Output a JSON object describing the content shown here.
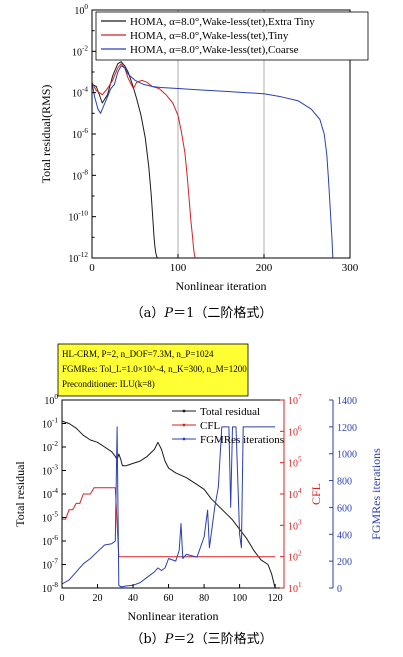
{
  "caption_a": {
    "prefix": "（a）",
    "var": "P",
    "rest": "＝1（二阶格式）"
  },
  "caption_b": {
    "prefix": "（b）",
    "var": "P",
    "rest": "＝2（三阶格式）"
  },
  "info_box": [
    "HL-CRM, P=2, n_DOF=7.3M, n_P=1024",
    "FGMRes: Tol_L=1.0×10^-4, n_K=300, n_M=1200",
    "Preconditioner: ILU(k=8)"
  ],
  "colors": {
    "black": "#1a1a1a",
    "red": "#d42222",
    "blue": "#2a3fb0",
    "grid": "#9a9a9a"
  },
  "chart_data": [
    {
      "type": "line",
      "title": "",
      "xlabel": "Nonlinear iteration",
      "ylabel": "Total residual(RMS)",
      "xlim": [
        0,
        300
      ],
      "ylim_log10": [
        -12,
        0
      ],
      "yscale": "log",
      "x_ticks": [
        "0",
        "100",
        "200",
        "300"
      ],
      "y_ticks": [
        "10^0",
        "10^-2",
        "10^-4",
        "10^-6",
        "10^-8",
        "10^-10",
        "10^-12"
      ],
      "vertical_lines_x": [
        100,
        200
      ],
      "legend_placement": "top-right",
      "series": [
        {
          "name": "HOMA, α=8.0°,Wake-less(tet),Extra Tiny",
          "color": "black",
          "x": [
            0,
            5,
            12,
            18,
            24,
            30,
            34,
            38,
            42,
            47,
            52,
            57,
            62,
            66,
            69,
            71,
            72,
            73,
            74,
            75,
            76
          ],
          "log10y": [
            -3.6,
            -3.7,
            -4.5,
            -4.1,
            -3.2,
            -2.6,
            -2.5,
            -2.7,
            -3.0,
            -3.6,
            -4.3,
            -5.1,
            -6.2,
            -7.6,
            -9,
            -10.3,
            -10.9,
            -11.4,
            -11.7,
            -11.9,
            -12
          ]
        },
        {
          "name": "HOMA, α=8.0°,Wake-less(tet),Tiny",
          "color": "red",
          "x": [
            0,
            5,
            12,
            18,
            24,
            30,
            34,
            38,
            42,
            48,
            52,
            58,
            64,
            70,
            78,
            86,
            94,
            100,
            104,
            108,
            111,
            113,
            115,
            117,
            118,
            119,
            120
          ],
          "log10y": [
            -3.5,
            -3.9,
            -4.1,
            -3.8,
            -3.4,
            -2.8,
            -2.6,
            -2.8,
            -3.3,
            -3.8,
            -3.5,
            -3.4,
            -3.5,
            -3.7,
            -3.8,
            -4.1,
            -4.5,
            -5.1,
            -5.9,
            -6.9,
            -8.2,
            -9.2,
            -10.2,
            -11,
            -11.5,
            -11.8,
            -12
          ]
        },
        {
          "name": "HOMA, α=8.0°,Wake-less(tet),Coarse",
          "color": "blue",
          "x": [
            0,
            3,
            7,
            10,
            14,
            18,
            22,
            26,
            30,
            34,
            38,
            42,
            50,
            60,
            70,
            80,
            100,
            120,
            140,
            160,
            180,
            200,
            220,
            240,
            255,
            265,
            270,
            273,
            275,
            277,
            279,
            280
          ],
          "log10y": [
            -3.5,
            -4.2,
            -4.8,
            -5.0,
            -4.6,
            -4.2,
            -3.8,
            -3.6,
            -3.0,
            -2.7,
            -2.8,
            -3.1,
            -3.4,
            -3.6,
            -3.7,
            -3.75,
            -3.8,
            -3.85,
            -3.9,
            -3.95,
            -4.0,
            -4.05,
            -4.2,
            -4.4,
            -4.8,
            -5.3,
            -6,
            -7,
            -8.2,
            -9.6,
            -11,
            -12
          ]
        }
      ]
    },
    {
      "type": "line",
      "title": "",
      "xlabel": "Nonlinear iteration",
      "ylabel": "Total residual",
      "y2label": "CFL",
      "y3label": "FGMRes iterations",
      "xlim": [
        0,
        125
      ],
      "ylim_log10": [
        -8,
        0
      ],
      "y2lim_log10": [
        1,
        7
      ],
      "y3lim": [
        0,
        1400
      ],
      "x_ticks": [
        "0",
        "20",
        "40",
        "60",
        "80",
        "100",
        "120"
      ],
      "y_ticks": [
        "10^0",
        "10^-1",
        "10^-2",
        "10^-3",
        "10^-4",
        "10^-5",
        "10^-6",
        "10^-7",
        "10^-8"
      ],
      "y2_ticks": [
        "10^7",
        "10^6",
        "10^5",
        "10^4",
        "10^3",
        "10^2",
        "10^1"
      ],
      "y3_ticks": [
        "1400",
        "1200",
        "1000",
        "800",
        "600",
        "400",
        "200",
        "0"
      ],
      "legend_placement": "top-center",
      "series": [
        {
          "name": "Total residual",
          "axis": "left",
          "color": "black",
          "x": [
            0,
            4,
            8,
            12,
            16,
            20,
            24,
            28,
            30,
            31,
            32,
            33,
            34,
            36,
            40,
            44,
            48,
            52,
            54,
            56,
            58,
            60,
            64,
            70,
            76,
            80,
            84,
            88,
            92,
            96,
            100,
            104,
            108,
            112,
            116,
            118,
            120
          ],
          "log10y": [
            -0.9,
            -1.0,
            -1.2,
            -1.5,
            -1.7,
            -1.8,
            -2.0,
            -2.2,
            -2.4,
            -2.55,
            -2.3,
            -2.5,
            -2.8,
            -2.8,
            -2.7,
            -2.6,
            -2.4,
            -2.1,
            -1.8,
            -2.1,
            -2.6,
            -2.9,
            -3.1,
            -3.3,
            -3.6,
            -3.8,
            -4.2,
            -4.5,
            -4.8,
            -5.1,
            -5.5,
            -5.9,
            -6.4,
            -6.8,
            -7.0,
            -7.4,
            -8.0
          ]
        },
        {
          "name": "CFL",
          "axis": "right1",
          "color": "red",
          "x": [
            0,
            2,
            4,
            6,
            8,
            10,
            12,
            14,
            16,
            18,
            20,
            22,
            24,
            26,
            28,
            30,
            32,
            34,
            36,
            38,
            40,
            45,
            50,
            55,
            60,
            64,
            70,
            76,
            80,
            84,
            86,
            88,
            90,
            92,
            94,
            96,
            98,
            100,
            102,
            104,
            106,
            108,
            110,
            112,
            114,
            116,
            118,
            120
          ],
          "log10y": [
            3.2,
            3.2,
            3.5,
            3.5,
            3.7,
            3.7,
            4.0,
            4.0,
            4.0,
            4.2,
            4.2,
            4.2,
            4.2,
            4.2,
            4.2,
            4.2,
            2.0,
            2.0,
            2.0,
            2.0,
            2.0,
            2.0,
            2.0,
            2.0,
            2.0,
            2.0,
            2.0,
            2.0,
            2.0,
            2.0,
            2.0,
            2.0,
            2.0,
            2.0,
            2.0,
            2.0,
            2.0,
            2.0,
            2.0,
            2.0,
            2.0,
            2.0,
            2.0,
            2.0,
            2.0,
            2.0,
            2.0,
            2.0
          ]
        },
        {
          "name": "FGMRes iterations",
          "axis": "right2",
          "color": "blue",
          "x": [
            0,
            4,
            8,
            12,
            16,
            20,
            24,
            28,
            30,
            31,
            32,
            33,
            34,
            36,
            40,
            44,
            48,
            52,
            54,
            56,
            58,
            60,
            64,
            66,
            67,
            68,
            70,
            76,
            80,
            82,
            83,
            84,
            86,
            88,
            90,
            92,
            94,
            95,
            96,
            98,
            100,
            101,
            102,
            104,
            106,
            108,
            110,
            112,
            114,
            116,
            118,
            120
          ],
          "y": [
            30,
            60,
            120,
            180,
            220,
            270,
            320,
            330,
            350,
            1200,
            20,
            10,
            10,
            15,
            20,
            40,
            80,
            120,
            150,
            130,
            150,
            220,
            200,
            280,
            480,
            220,
            250,
            230,
            380,
            580,
            300,
            400,
            600,
            750,
            1200,
            1200,
            1200,
            600,
            1200,
            1200,
            400,
            300,
            1200,
            1200,
            1200,
            1200,
            1200,
            1200,
            1200,
            1200,
            1200,
            1200
          ]
        }
      ]
    }
  ]
}
